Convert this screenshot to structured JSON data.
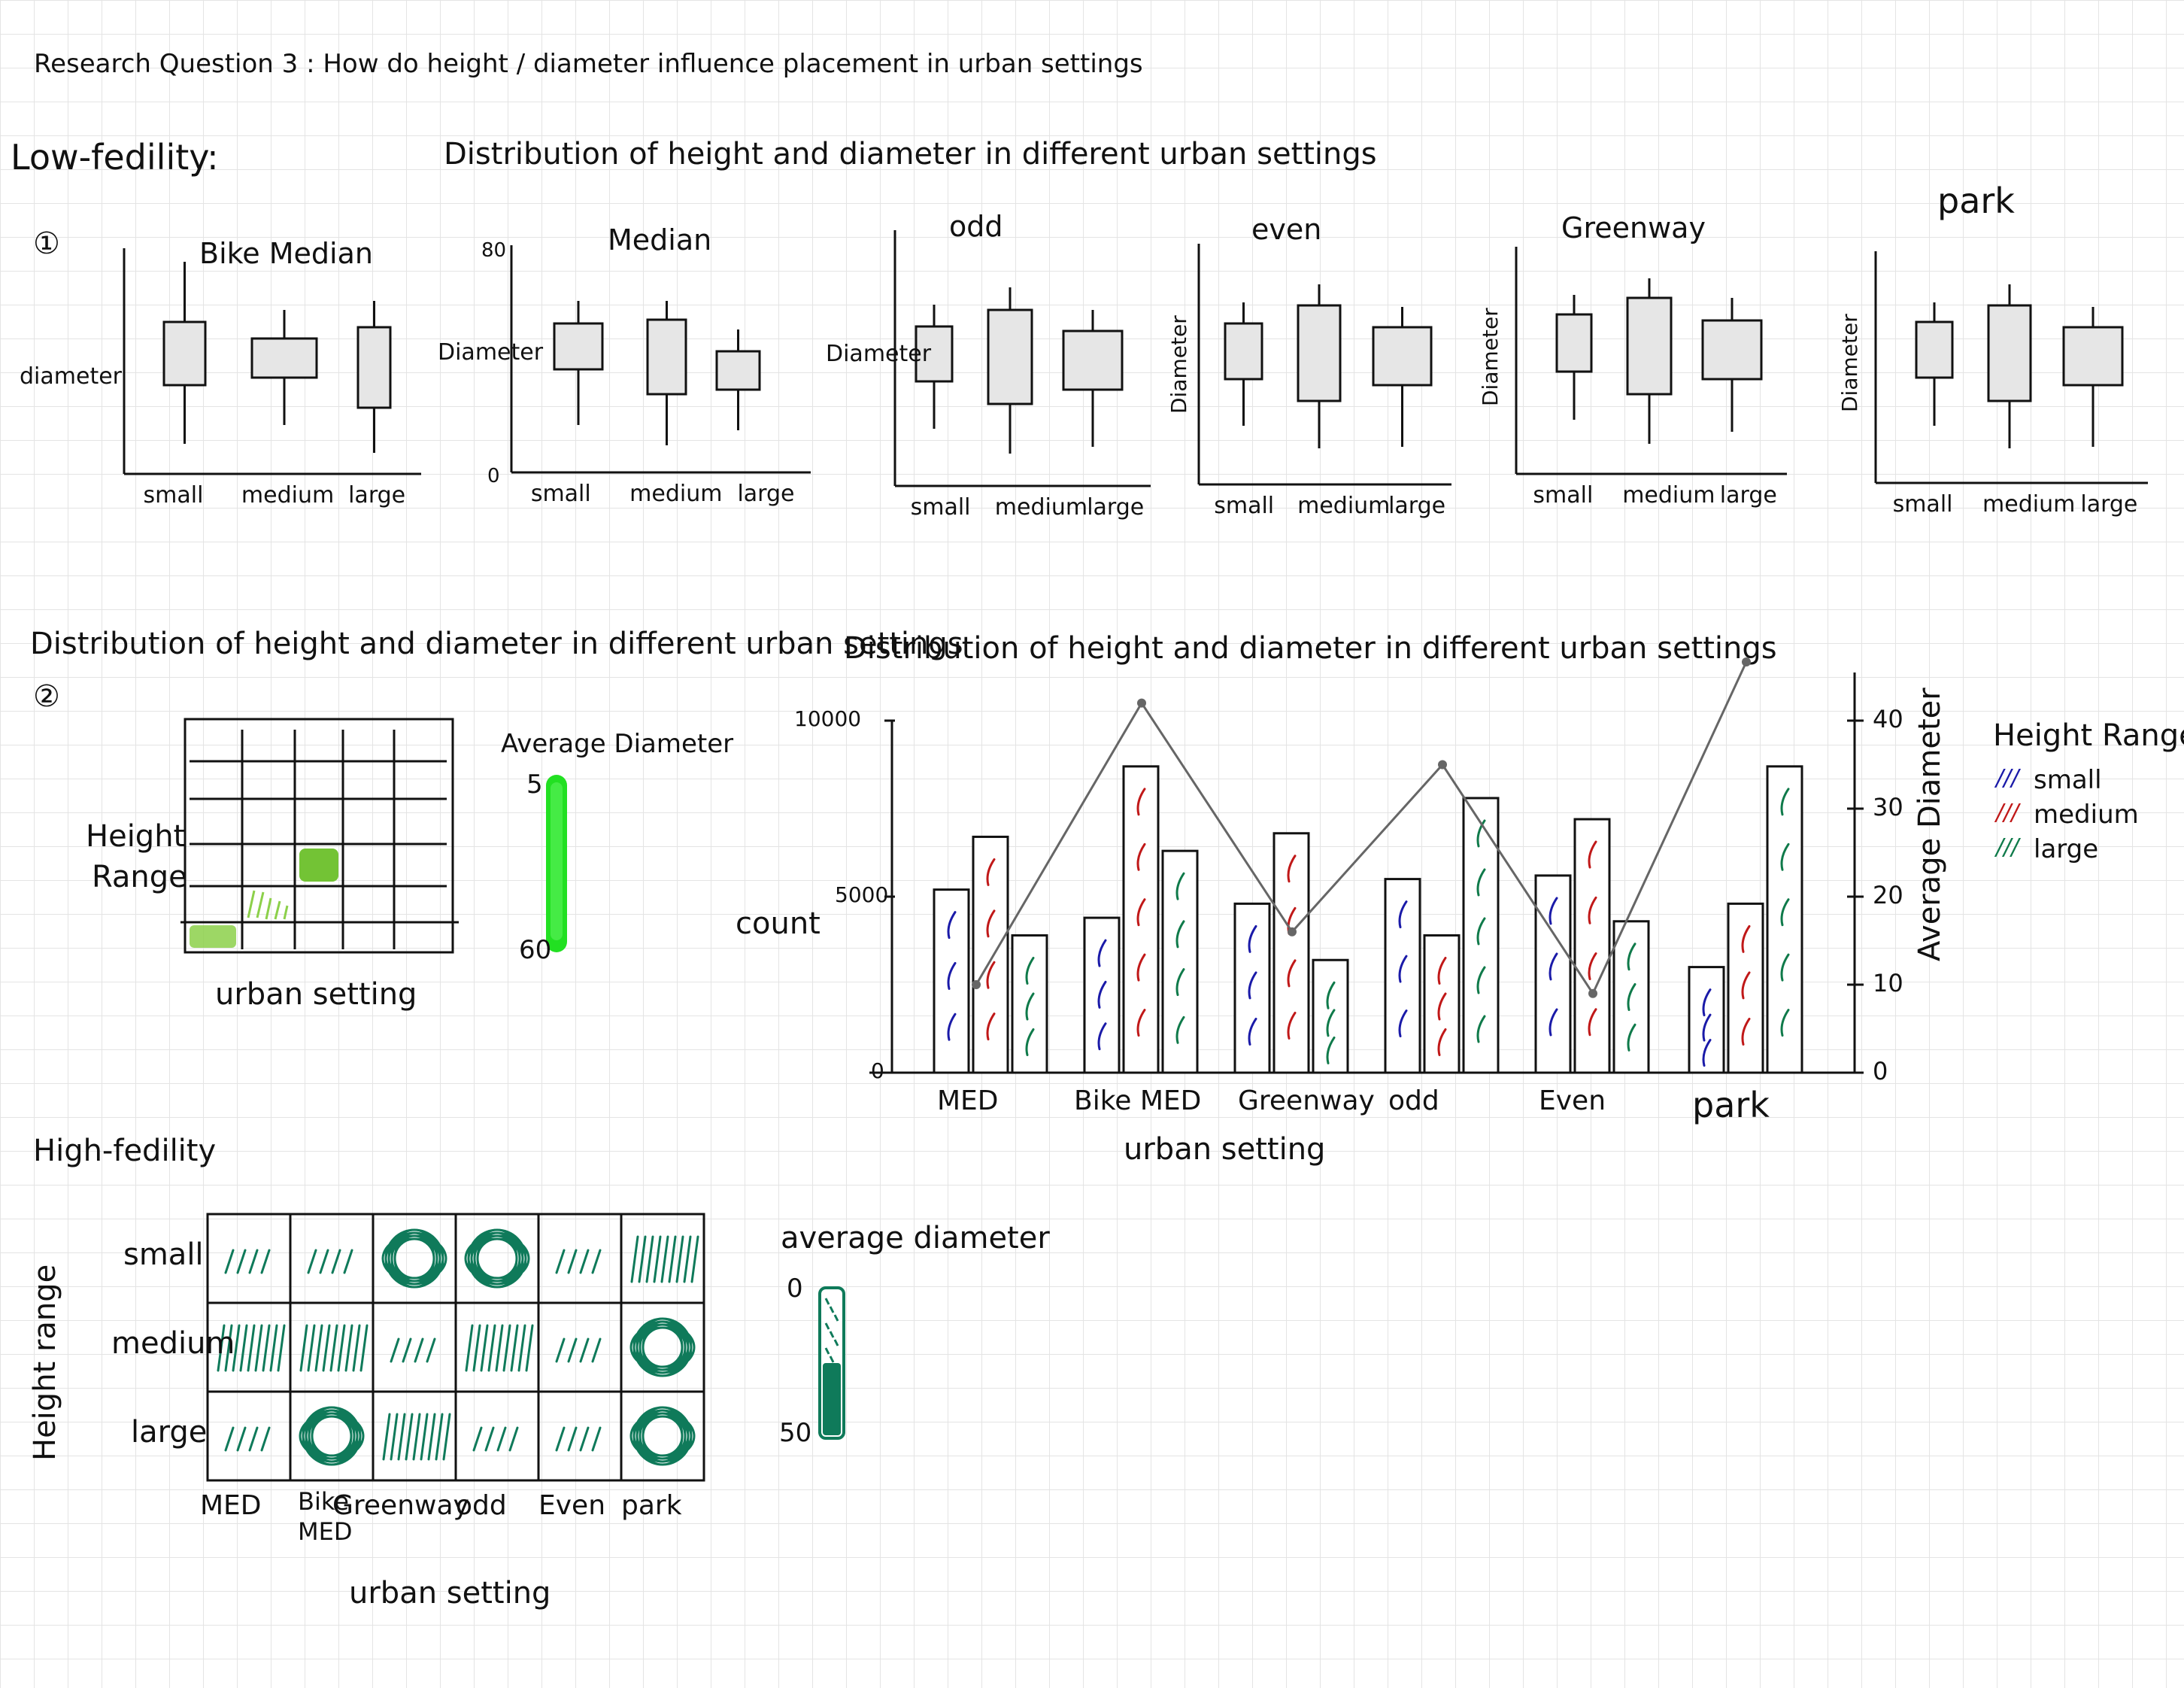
{
  "header": {
    "title": "Research Question 3 : How do height / diameter influence placement in urban settings"
  },
  "low_fidelity": {
    "label": "Low-fedility:",
    "section1": {
      "number": "①",
      "heading": "Distribution of height and diameter in different urban settings",
      "box_charts": [
        {
          "title": "Bike Median",
          "ylabel": "diameter",
          "y_top": "",
          "y_bottom": "",
          "categories": [
            "small",
            "medium",
            "large"
          ]
        },
        {
          "title": "Median",
          "ylabel": "Diameter",
          "y_top": "80",
          "y_bottom": "0",
          "categories": [
            "small",
            "medium",
            "large"
          ]
        },
        {
          "title": "odd",
          "ylabel": "Diameter",
          "y_top": "",
          "y_bottom": "",
          "categories": [
            "small",
            "medium",
            "large"
          ]
        },
        {
          "title": "even",
          "ylabel": "Diameter",
          "y_top": "",
          "y_bottom": "",
          "categories": [
            "small",
            "medium",
            "large"
          ]
        },
        {
          "title": "Greenway",
          "ylabel": "Diameter",
          "y_top": "",
          "y_bottom": "",
          "categories": [
            "small",
            "medium",
            "large"
          ]
        },
        {
          "title": "park",
          "ylabel": "Diameter",
          "y_top": "",
          "y_bottom": "",
          "categories": [
            "small",
            "medium",
            "large"
          ]
        }
      ]
    },
    "section2": {
      "number": "②",
      "heading": "Distribution of height and diameter in different urban settings",
      "heatmap": {
        "ylabel_line1": "Height",
        "ylabel_line2": "Range",
        "xlabel": "urban setting",
        "legend_title": "Average Diameter",
        "legend_top": "5",
        "legend_bottom": "60",
        "legend_color": "#22e022",
        "cell_color": "#6cc02a"
      }
    },
    "combo_chart": {
      "heading": "Distribution of height and diameter in different urban settings",
      "ylabel_left": "count",
      "ylabel_right": "Average Diameter",
      "xlabel": "urban setting",
      "left_ticks": [
        "10000",
        "5000",
        "0"
      ],
      "right_ticks": [
        "40",
        "30",
        "20",
        "10",
        "0"
      ],
      "legend_title": "Height Range",
      "legend": [
        {
          "label": "small",
          "color": "#1a1aa8"
        },
        {
          "label": "medium",
          "color": "#c01818"
        },
        {
          "label": "large",
          "color": "#0f7a4a"
        }
      ],
      "categories": [
        "MED",
        "Bike MED",
        "Greenway",
        "odd",
        "Even",
        "park"
      ]
    }
  },
  "high_fidelity": {
    "label": "High-fedility",
    "ylabel": "Height range",
    "xlabel": "urban setting",
    "row_labels": [
      "small",
      "medium",
      "large"
    ],
    "col_labels": [
      "MED",
      "Bike MED",
      "Greenway",
      "odd",
      "Even",
      "park"
    ],
    "legend_title": "average diameter",
    "legend_top": "0",
    "legend_bottom": "50",
    "scribble_color": "#0f7a5a"
  },
  "chart_data": {
    "type": "bar",
    "title": "Distribution of height and diameter in different urban settings",
    "xlabel": "urban setting",
    "ylabel": "count",
    "y2label": "Average Diameter",
    "categories": [
      "MED",
      "Bike MED",
      "Greenway",
      "odd",
      "Even",
      "park"
    ],
    "ylim": [
      0,
      10000
    ],
    "y2lim": [
      0,
      40
    ],
    "series": [
      {
        "name": "small",
        "values": [
          5200,
          4400,
          4800,
          5500,
          5600,
          3000
        ]
      },
      {
        "name": "medium",
        "values": [
          6700,
          8700,
          6800,
          3900,
          7200,
          4800
        ]
      },
      {
        "name": "large",
        "values": [
          3900,
          6300,
          3200,
          7800,
          4300,
          8700
        ]
      }
    ],
    "line": {
      "name": "Average Diameter",
      "values": [
        10,
        42,
        16,
        35,
        9,
        47
      ]
    },
    "legend": "right"
  }
}
